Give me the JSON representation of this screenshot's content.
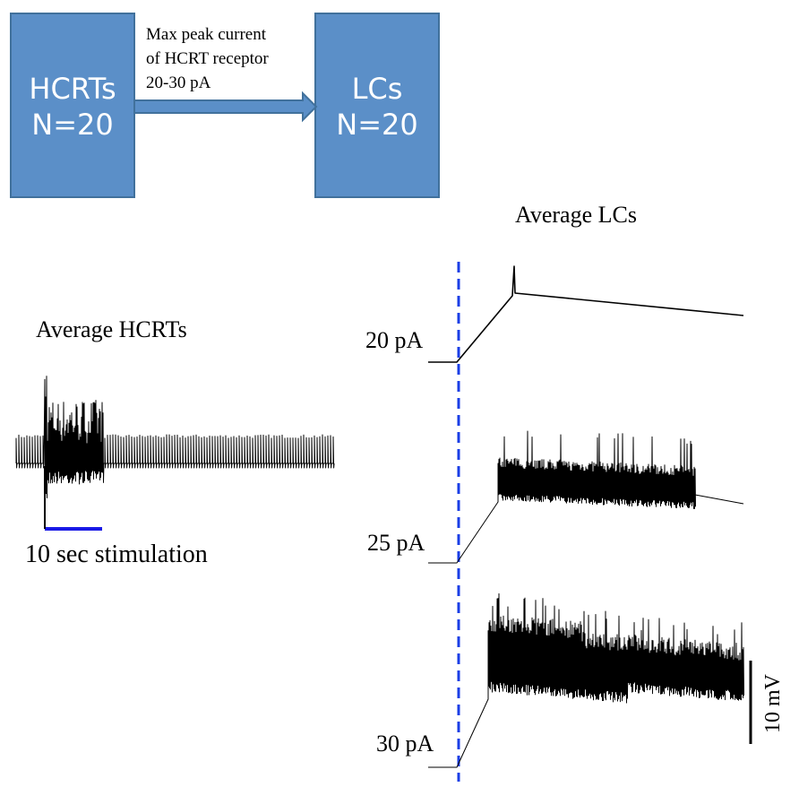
{
  "boxes": [
    {
      "name": "HCRTs",
      "count": "N=20"
    },
    {
      "name": "LCs",
      "count": "N=20"
    }
  ],
  "arrow": {
    "lines": [
      "Max peak current",
      "of HCRT receptor",
      "20-30 pA"
    ]
  },
  "hcrt_panel": {
    "title": "Average HCRTs",
    "stimulus": "10 sec stimulation"
  },
  "lc_panel": {
    "title": "Average LCs",
    "traces": [
      "20 pA",
      "25 pA",
      "30 pA"
    ],
    "scale_bar": "10 mV"
  }
}
